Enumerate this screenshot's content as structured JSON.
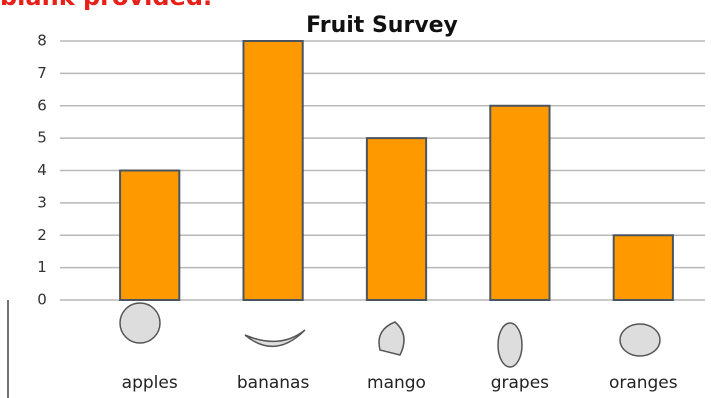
{
  "header": {
    "note": "blank provided."
  },
  "chart_data": {
    "type": "bar",
    "title": "Fruit Survey",
    "categories": [
      "apples",
      "bananas",
      "mango",
      "grapes",
      "oranges"
    ],
    "values": [
      4,
      8,
      5,
      6,
      2
    ],
    "color": "#ff9900",
    "ylim": [
      0,
      8
    ],
    "yticks": [
      0,
      1,
      2,
      3,
      4,
      5,
      6,
      7,
      8
    ],
    "grid": true
  }
}
